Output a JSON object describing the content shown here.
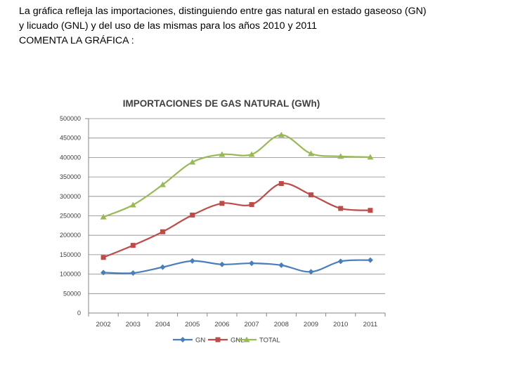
{
  "intro": {
    "line1": "La gráfica refleja las importaciones, distinguiendo entre gas natural en estado gaseoso (GN)",
    "line2": "y licuado (GNL) y del uso de las mismas para los años 2010 y 2011",
    "line3": "COMENTA LA GRÁFICA :"
  },
  "chart_data": {
    "type": "line",
    "title": "IMPORTACIONES DE GAS NATURAL (GWh)",
    "categories": [
      "2002",
      "2003",
      "2004",
      "2005",
      "2006",
      "2007",
      "2008",
      "2009",
      "2010",
      "2011"
    ],
    "series": [
      {
        "name": "GN",
        "color": "#4a7ebb",
        "marker": "diamond",
        "values": [
          104000,
          103000,
          118000,
          134000,
          125000,
          128000,
          123000,
          106000,
          133000,
          136000
        ]
      },
      {
        "name": "GNL",
        "color": "#be4b48",
        "marker": "square",
        "values": [
          143000,
          174000,
          209000,
          252000,
          282000,
          279000,
          333000,
          304000,
          269000,
          264000
        ]
      },
      {
        "name": "TOTAL",
        "color": "#98b954",
        "marker": "triangle",
        "values": [
          247000,
          278000,
          330000,
          388000,
          408000,
          408000,
          458000,
          410000,
          403000,
          401000
        ]
      }
    ],
    "yticks": [
      "0",
      "50000",
      "100000",
      "150000",
      "200000",
      "250000",
      "300000",
      "350000",
      "400000",
      "450000",
      "500000"
    ],
    "ylim": [
      0,
      500000
    ],
    "xlabel": "",
    "ylabel": "",
    "grid": true,
    "legend": "bottom"
  }
}
